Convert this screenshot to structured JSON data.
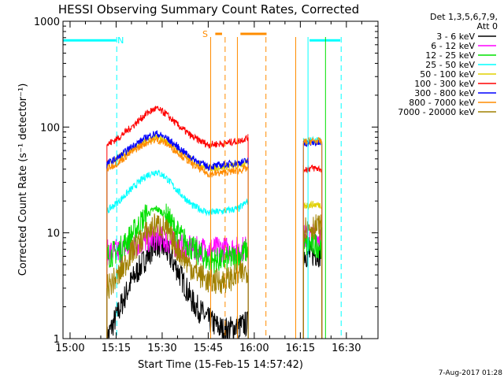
{
  "chart_data": {
    "type": "line",
    "title": "HESSI Observing Summary Count Rates, Corrected",
    "xlabel": "Start Time (15-Feb-15 14:57:42)",
    "ylabel": "Corrected Count Rate (s⁻¹ detector⁻¹)",
    "yscale": "log",
    "ylim": [
      1,
      1000
    ],
    "xlim": [
      "14:57:42",
      "16:38:00"
    ],
    "x_ticks": [
      "15:00",
      "15:15",
      "15:30",
      "15:45",
      "16:00",
      "16:15",
      "16:30"
    ],
    "x_tick_minutes": [
      0,
      15,
      30,
      45,
      60,
      75,
      90
    ],
    "y_ticks": [
      1,
      10,
      100,
      1000
    ],
    "y_tick_labels": [
      "1",
      "10",
      "100",
      "1000"
    ],
    "legend_header": [
      "Det 1,3,5,6,7,9,",
      "Att 0"
    ],
    "legend_placement": "right",
    "series": [
      {
        "name": "3 - 6 keV",
        "color": "#000000",
        "values": [
          [
            12,
            1
          ],
          [
            15,
            1.6
          ],
          [
            20,
            3.5
          ],
          [
            25,
            6
          ],
          [
            28,
            8
          ],
          [
            31,
            7
          ],
          [
            35,
            4.5
          ],
          [
            40,
            2.2
          ],
          [
            45,
            1.5
          ],
          [
            50,
            1.2
          ],
          [
            55,
            1.3
          ],
          [
            58,
            1.4
          ],
          [
            76,
            6.5
          ],
          [
            77,
            6.2
          ],
          [
            80,
            6.3
          ],
          [
            82,
            6.3
          ]
        ]
      },
      {
        "name": "6 - 12 keV",
        "color": "#ff00ff",
        "values": [
          [
            12,
            6.5
          ],
          [
            16,
            6.7
          ],
          [
            20,
            7.5
          ],
          [
            25,
            8.5
          ],
          [
            28,
            9
          ],
          [
            31,
            8.5
          ],
          [
            35,
            7.5
          ],
          [
            40,
            7
          ],
          [
            45,
            7
          ],
          [
            50,
            7
          ],
          [
            55,
            7
          ],
          [
            58,
            7.2
          ],
          [
            76,
            9
          ],
          [
            79,
            9.3
          ],
          [
            82,
            9.2
          ]
        ]
      },
      {
        "name": "12 - 25 keV",
        "color": "#00e000",
        "values": [
          [
            12,
            6
          ],
          [
            16,
            6.8
          ],
          [
            20,
            9.5
          ],
          [
            25,
            15
          ],
          [
            28,
            17
          ],
          [
            31,
            15
          ],
          [
            35,
            10
          ],
          [
            40,
            7
          ],
          [
            45,
            5.5
          ],
          [
            50,
            5.5
          ],
          [
            55,
            6
          ],
          [
            58,
            7
          ],
          [
            76,
            7.5
          ],
          [
            79,
            7.7
          ],
          [
            82,
            7.6
          ]
        ]
      },
      {
        "name": "25 - 50 keV",
        "color": "#00ffff",
        "values": [
          [
            12,
            16
          ],
          [
            16,
            20
          ],
          [
            20,
            26
          ],
          [
            25,
            35
          ],
          [
            28,
            38
          ],
          [
            31,
            34
          ],
          [
            35,
            25
          ],
          [
            40,
            18
          ],
          [
            45,
            15.5
          ],
          [
            50,
            16
          ],
          [
            55,
            17
          ],
          [
            58,
            20
          ],
          [
            76,
            73
          ],
          [
            79,
            74
          ],
          [
            82,
            73
          ]
        ]
      },
      {
        "name": "50 - 100 keV",
        "color": "#e0d000",
        "values": [
          [
            12,
            45
          ],
          [
            16,
            52
          ],
          [
            20,
            62
          ],
          [
            25,
            75
          ],
          [
            28,
            80
          ],
          [
            31,
            75
          ],
          [
            35,
            62
          ],
          [
            40,
            48
          ],
          [
            45,
            41
          ],
          [
            50,
            42
          ],
          [
            55,
            44
          ],
          [
            58,
            46
          ],
          [
            76,
            18
          ],
          [
            79,
            18.5
          ],
          [
            82,
            18.3
          ]
        ]
      },
      {
        "name": "100 - 300 keV",
        "color": "#ff0000",
        "values": [
          [
            12,
            68
          ],
          [
            16,
            80
          ],
          [
            20,
            100
          ],
          [
            25,
            135
          ],
          [
            28,
            150
          ],
          [
            31,
            135
          ],
          [
            35,
            105
          ],
          [
            40,
            80
          ],
          [
            45,
            68
          ],
          [
            50,
            70
          ],
          [
            55,
            74
          ],
          [
            58,
            80
          ],
          [
            76,
            40
          ],
          [
            79,
            41
          ],
          [
            82,
            40
          ]
        ]
      },
      {
        "name": "300 - 800 keV",
        "color": "#0000ff",
        "values": [
          [
            12,
            45
          ],
          [
            16,
            52
          ],
          [
            20,
            65
          ],
          [
            25,
            80
          ],
          [
            28,
            87
          ],
          [
            31,
            80
          ],
          [
            35,
            65
          ],
          [
            40,
            50
          ],
          [
            45,
            42
          ],
          [
            50,
            44
          ],
          [
            55,
            46
          ],
          [
            58,
            48
          ],
          [
            76,
            70
          ],
          [
            79,
            71
          ],
          [
            82,
            70
          ]
        ]
      },
      {
        "name": "800 - 7000 keV",
        "color": "#ff8c00",
        "values": [
          [
            12,
            40
          ],
          [
            16,
            47
          ],
          [
            20,
            58
          ],
          [
            25,
            72
          ],
          [
            28,
            76
          ],
          [
            31,
            71
          ],
          [
            35,
            58
          ],
          [
            40,
            44
          ],
          [
            45,
            36
          ],
          [
            50,
            37
          ],
          [
            55,
            39
          ],
          [
            58,
            41
          ],
          [
            76,
            72
          ],
          [
            79,
            74
          ],
          [
            82,
            73
          ]
        ]
      },
      {
        "name": "7000 - 20000 keV",
        "color": "#a08000",
        "values": [
          [
            12,
            3
          ],
          [
            16,
            4
          ],
          [
            20,
            6.5
          ],
          [
            25,
            10
          ],
          [
            28,
            12
          ],
          [
            31,
            11
          ],
          [
            35,
            7
          ],
          [
            40,
            4.5
          ],
          [
            45,
            3.5
          ],
          [
            50,
            3.5
          ],
          [
            55,
            4
          ],
          [
            58,
            4.5
          ],
          [
            76,
            11
          ],
          [
            79,
            11.5
          ],
          [
            82,
            11.3
          ]
        ]
      }
    ],
    "annotations": [
      {
        "text": "N",
        "x": 16.5,
        "y": 660,
        "color": "#00ffff"
      },
      {
        "text": "S",
        "x": 44,
        "y": 760,
        "color": "#ff8c00"
      }
    ],
    "flag_bars": [
      {
        "name": "night",
        "color": "#00ffff",
        "segments": [
          [
            -2.7,
            15
          ],
          [
            78,
            88
          ]
        ],
        "y": 660
      },
      {
        "name": "saa",
        "color": "#ff8c00",
        "segments": [
          [
            47.3,
            49.5
          ],
          [
            55.5,
            64
          ]
        ],
        "y": 760
      }
    ],
    "vlines": [
      {
        "color": "#00ffff",
        "style": "dashed",
        "x": 15.2
      },
      {
        "color": "#00ffff",
        "style": "solid",
        "x": 77.5
      },
      {
        "color": "#00ffff",
        "style": "dashed",
        "x": 88.3
      },
      {
        "color": "#ff8c00",
        "style": "solid",
        "x": 45.8
      },
      {
        "color": "#ff8c00",
        "style": "dashed",
        "x": 50.5
      },
      {
        "color": "#ff8c00",
        "style": "solid",
        "x": 54.5
      },
      {
        "color": "#ff8c00",
        "style": "dashed",
        "x": 63.8
      },
      {
        "color": "#ff8c00",
        "style": "solid",
        "x": 73.5
      },
      {
        "color": "#00e000",
        "style": "solid",
        "x": 83.2
      }
    ]
  },
  "footer": {
    "timestamp": "7-Aug-2017 01:28"
  }
}
